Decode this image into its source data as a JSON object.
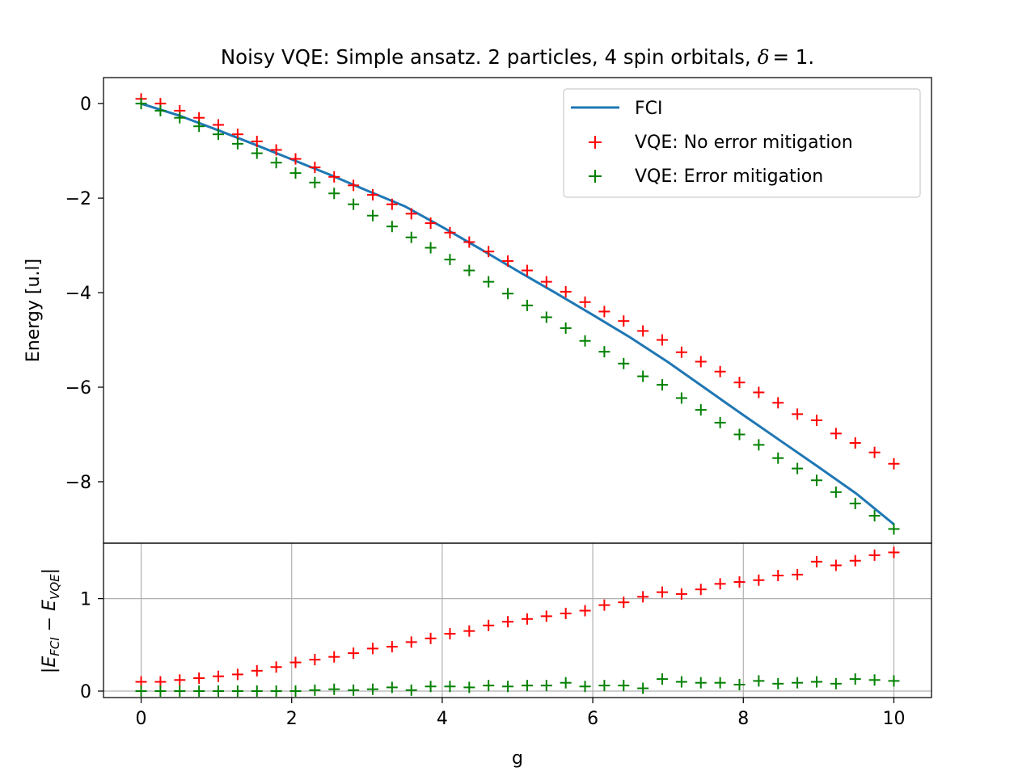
{
  "chart_data": {
    "type": "scatter",
    "title_text": "Noisy VQE: Simple ansatz. 2 particles, 4 spin orbitals,",
    "title_math_symbol": "δ",
    "title_math_rest": "= 1.",
    "xlabel": "g",
    "xlim": [
      -0.5,
      10.5
    ],
    "x_ticks": [
      0,
      2,
      4,
      6,
      8,
      10
    ],
    "x_tick_labels": [
      "0",
      "2",
      "4",
      "6",
      "8",
      "10"
    ],
    "x": [
      0,
      0.2564,
      0.5128,
      0.7692,
      1.0256,
      1.2821,
      1.5385,
      1.7949,
      2.0513,
      2.3077,
      2.5641,
      2.8205,
      3.0769,
      3.3333,
      3.5897,
      3.8462,
      4.1026,
      4.359,
      4.6154,
      4.8718,
      5.1282,
      5.3846,
      5.641,
      5.8974,
      6.1538,
      6.4103,
      6.6667,
      6.9231,
      7.1795,
      7.4359,
      7.6923,
      7.9487,
      8.2051,
      8.4615,
      8.7179,
      8.9744,
      9.2308,
      9.4872,
      9.7436,
      10
    ],
    "top": {
      "ylabel": "Energy [u.l]",
      "ylim": [
        -9.3,
        0.55
      ],
      "y_ticks": [
        0,
        -2,
        -4,
        -6,
        -8
      ],
      "y_tick_labels": [
        "0",
        "−2",
        "−4",
        "−6",
        "−8"
      ],
      "grid": false,
      "legend_position": "upper right",
      "series": [
        {
          "name": "FCI",
          "style": "line",
          "color": "#1f77b4",
          "x": [
            0,
            0.5,
            1,
            1.5,
            2,
            2.5,
            3,
            3.5,
            4,
            4.5,
            5,
            5.5,
            6,
            6.5,
            7,
            7.5,
            8,
            8.5,
            9,
            9.5,
            10
          ],
          "values": [
            0,
            -0.25,
            -0.55,
            -0.86,
            -1.18,
            -1.5,
            -1.84,
            -2.17,
            -2.61,
            -3.07,
            -3.54,
            -4.0,
            -4.47,
            -4.95,
            -5.47,
            -6.03,
            -6.59,
            -7.14,
            -7.69,
            -8.25,
            -8.9
          ]
        },
        {
          "name": "VQE: No error mitigation",
          "style": "plus",
          "color": "#ff0000",
          "values": [
            0.1,
            0.0,
            -0.15,
            -0.3,
            -0.45,
            -0.65,
            -0.8,
            -0.98,
            -1.17,
            -1.35,
            -1.55,
            -1.73,
            -1.93,
            -2.13,
            -2.33,
            -2.53,
            -2.73,
            -2.93,
            -3.13,
            -3.33,
            -3.53,
            -3.77,
            -3.98,
            -4.2,
            -4.4,
            -4.6,
            -4.81,
            -5.0,
            -5.26,
            -5.46,
            -5.67,
            -5.9,
            -6.11,
            -6.33,
            -6.57,
            -6.7,
            -6.98,
            -7.18,
            -7.38,
            -7.62
          ]
        },
        {
          "name": "VQE: Error mitigation",
          "style": "plus",
          "color": "#008000",
          "values": [
            0.0,
            -0.15,
            -0.3,
            -0.48,
            -0.65,
            -0.85,
            -1.05,
            -1.25,
            -1.47,
            -1.67,
            -1.9,
            -2.13,
            -2.37,
            -2.6,
            -2.83,
            -3.05,
            -3.3,
            -3.53,
            -3.77,
            -4.02,
            -4.27,
            -4.52,
            -4.75,
            -5.02,
            -5.25,
            -5.5,
            -5.77,
            -5.95,
            -6.23,
            -6.48,
            -6.75,
            -7.0,
            -7.22,
            -7.5,
            -7.72,
            -7.97,
            -8.22,
            -8.46,
            -8.72,
            -9.0
          ]
        }
      ]
    },
    "bottom": {
      "ylabel_text": "|E",
      "ylabel_sub1": "FCI",
      "ylabel_mid": " − E",
      "ylabel_sub2": "VQE",
      "ylabel_end": "|",
      "ylim": [
        -0.07,
        1.6
      ],
      "y_ticks": [
        0,
        1
      ],
      "y_tick_labels": [
        "0",
        "1"
      ],
      "grid": true,
      "series": [
        {
          "name": "VQE: No error mitigation",
          "style": "plus",
          "color": "#ff0000",
          "values": [
            0.1,
            0.1,
            0.12,
            0.14,
            0.16,
            0.18,
            0.22,
            0.26,
            0.31,
            0.34,
            0.37,
            0.41,
            0.46,
            0.48,
            0.53,
            0.57,
            0.62,
            0.65,
            0.71,
            0.75,
            0.78,
            0.81,
            0.84,
            0.87,
            0.93,
            0.96,
            1.02,
            1.07,
            1.05,
            1.1,
            1.16,
            1.18,
            1.2,
            1.25,
            1.26,
            1.4,
            1.36,
            1.41,
            1.47,
            1.5
          ]
        },
        {
          "name": "VQE: Error mitigation",
          "style": "plus",
          "color": "#008000",
          "values": [
            0.0,
            0.0,
            0.0,
            0.0,
            0.0,
            0.0,
            0.0,
            0.0,
            0.0,
            0.01,
            0.02,
            0.01,
            0.02,
            0.04,
            0.01,
            0.05,
            0.05,
            0.04,
            0.06,
            0.05,
            0.06,
            0.06,
            0.09,
            0.05,
            0.06,
            0.06,
            0.03,
            0.13,
            0.1,
            0.09,
            0.09,
            0.07,
            0.11,
            0.08,
            0.09,
            0.1,
            0.08,
            0.13,
            0.12,
            0.11
          ]
        }
      ]
    }
  }
}
